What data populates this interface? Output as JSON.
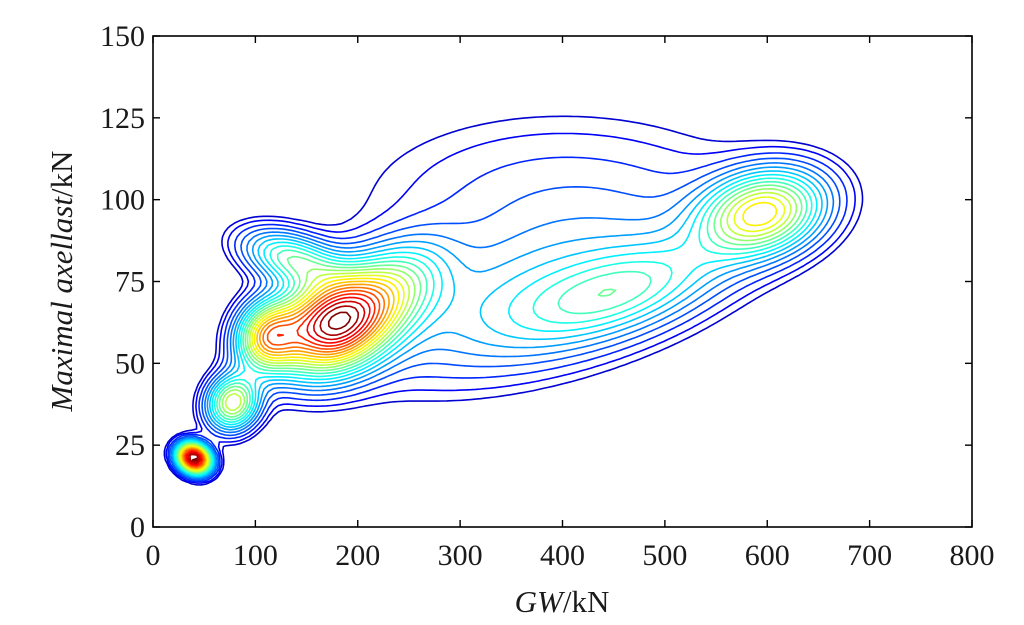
{
  "chart_data": {
    "type": "contour",
    "xlabel": {
      "italic": "GW",
      "rest": "/kN"
    },
    "ylabel": {
      "italic": "Maximal axellast",
      "rest": "/kN"
    },
    "xlim": [
      0,
      800
    ],
    "ylim": [
      0,
      150
    ],
    "xticks": [
      "0",
      "100",
      "200",
      "300",
      "400",
      "500",
      "600",
      "700",
      "800"
    ],
    "yticks": [
      "0",
      "25",
      "50",
      "75",
      "100",
      "125",
      "150"
    ],
    "grid": false,
    "legend": "none",
    "colormap": "jet",
    "contour_levels": 24,
    "density_components": [
      {
        "center": [
          40,
          21
        ],
        "spread": [
          9,
          3.5
        ],
        "rotation_deg": 60,
        "weight": 1.0
      },
      {
        "center": [
          78,
          38
        ],
        "spread": [
          18,
          5
        ],
        "rotation_deg": 62,
        "weight": 0.45
      },
      {
        "center": [
          112,
          58
        ],
        "spread": [
          22,
          6
        ],
        "rotation_deg": 68,
        "weight": 0.5
      },
      {
        "center": [
          135,
          82
        ],
        "spread": [
          16,
          10
        ],
        "rotation_deg": 72,
        "weight": 0.3
      },
      {
        "center": [
          175,
          62
        ],
        "spread": [
          38,
          9
        ],
        "rotation_deg": 28,
        "weight": 0.85
      },
      {
        "center": [
          230,
          72
        ],
        "spread": [
          40,
          8
        ],
        "rotation_deg": 35,
        "weight": 0.3
      },
      {
        "center": [
          360,
          68
        ],
        "spread": [
          110,
          14
        ],
        "rotation_deg": 14,
        "weight": 0.16
      },
      {
        "center": [
          460,
          72
        ],
        "spread": [
          70,
          8
        ],
        "rotation_deg": 18,
        "weight": 0.2
      },
      {
        "center": [
          595,
          96
        ],
        "spread": [
          40,
          8
        ],
        "rotation_deg": 15,
        "weight": 0.5
      },
      {
        "center": [
          400,
          100
        ],
        "spread": [
          130,
          18
        ],
        "rotation_deg": 0,
        "weight": 0.08
      }
    ]
  }
}
